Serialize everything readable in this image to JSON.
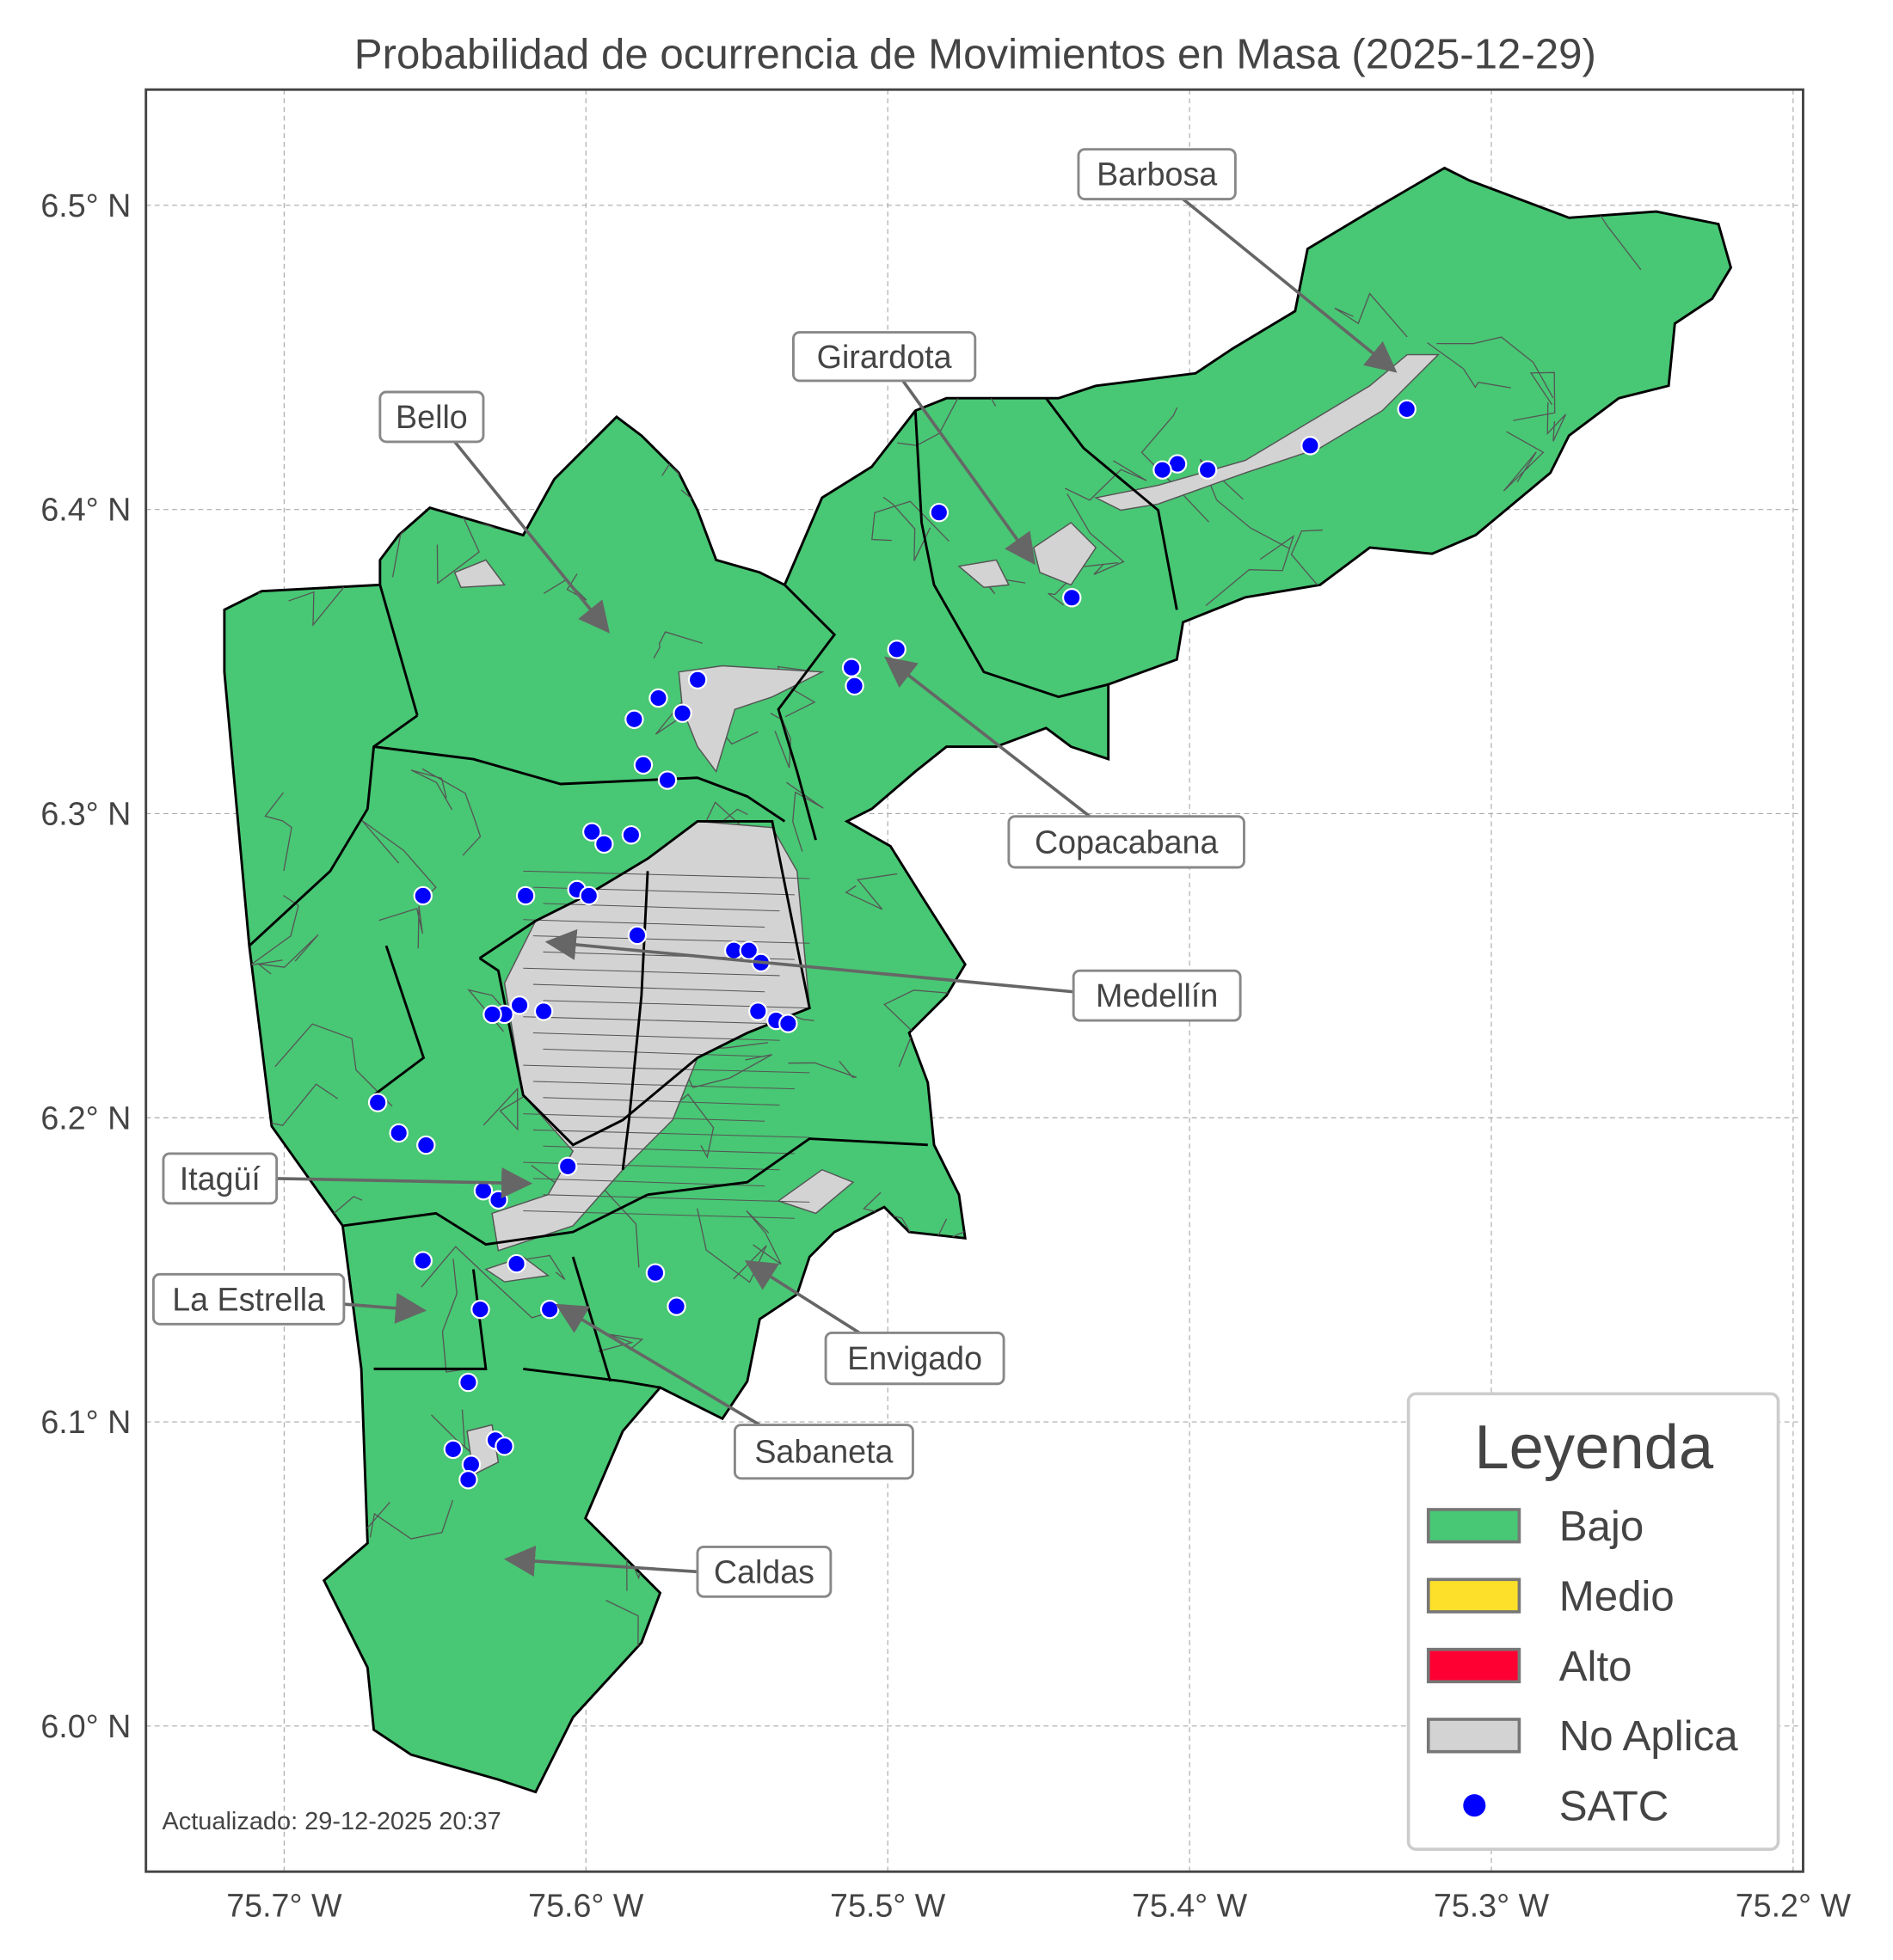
{
  "title": "Probabilidad de ocurrencia de Movimientos en Masa (2025-12-29)",
  "updated": "Actualizado: 29-12-2025 20:37",
  "axes": {
    "x_ticks": [
      {
        "value": -75.7,
        "label": "75.7° W"
      },
      {
        "value": -75.6,
        "label": "75.6° W"
      },
      {
        "value": -75.5,
        "label": "75.5° W"
      },
      {
        "value": -75.4,
        "label": "75.4° W"
      },
      {
        "value": -75.3,
        "label": "75.3° W"
      },
      {
        "value": -75.2,
        "label": "75.2° W"
      }
    ],
    "y_ticks": [
      {
        "value": 6.0,
        "label": "6.0° N"
      },
      {
        "value": 6.1,
        "label": "6.1° N"
      },
      {
        "value": 6.2,
        "label": "6.2° N"
      },
      {
        "value": 6.3,
        "label": "6.3° N"
      },
      {
        "value": 6.4,
        "label": "6.4° N"
      },
      {
        "value": 6.5,
        "label": "6.5° N"
      }
    ],
    "grid": true
  },
  "legend": {
    "title": "Leyenda",
    "placement": "bottom-right",
    "items": [
      {
        "label": "Bajo",
        "color": "#48C774",
        "kind": "patch"
      },
      {
        "label": "Medio",
        "color": "#FCE02A",
        "kind": "patch"
      },
      {
        "label": "Alto",
        "color": "#FF0033",
        "kind": "patch"
      },
      {
        "label": "No Aplica",
        "color": "#D3D3D3",
        "kind": "patch"
      },
      {
        "label": "SATC",
        "color": "#0000FF",
        "kind": "point"
      }
    ]
  },
  "municipalities": [
    {
      "name": "Barbosa",
      "level": "Bajo"
    },
    {
      "name": "Girardota",
      "level": "Bajo"
    },
    {
      "name": "Bello",
      "level": "Bajo"
    },
    {
      "name": "Copacabana",
      "level": "Bajo"
    },
    {
      "name": "Medellín",
      "level": "Bajo"
    },
    {
      "name": "Itagüí",
      "level": "Bajo"
    },
    {
      "name": "La Estrella",
      "level": "Bajo"
    },
    {
      "name": "Envigado",
      "level": "Bajo"
    },
    {
      "name": "Sabaneta",
      "level": "Bajo"
    },
    {
      "name": "Caldas",
      "level": "Bajo"
    }
  ],
  "satc_stations": [
    [
      -75.328,
      6.433
    ],
    [
      -75.36,
      6.421
    ],
    [
      -75.394,
      6.413
    ],
    [
      -75.404,
      6.415
    ],
    [
      -75.409,
      6.413
    ],
    [
      -75.483,
      6.399
    ],
    [
      -75.439,
      6.371
    ],
    [
      -75.497,
      6.354
    ],
    [
      -75.512,
      6.348
    ],
    [
      -75.511,
      6.342
    ],
    [
      -75.563,
      6.344
    ],
    [
      -75.568,
      6.333
    ],
    [
      -75.576,
      6.338
    ],
    [
      -75.584,
      6.331
    ],
    [
      -75.581,
      6.316
    ],
    [
      -75.573,
      6.311
    ],
    [
      -75.598,
      6.294
    ],
    [
      -75.594,
      6.29
    ],
    [
      -75.585,
      6.293
    ],
    [
      -75.654,
      6.273
    ],
    [
      -75.62,
      6.273
    ],
    [
      -75.603,
      6.275
    ],
    [
      -75.599,
      6.273
    ],
    [
      -75.583,
      6.26
    ],
    [
      -75.551,
      6.255
    ],
    [
      -75.546,
      6.255
    ],
    [
      -75.542,
      6.251
    ],
    [
      -75.543,
      6.235
    ],
    [
      -75.537,
      6.232
    ],
    [
      -75.533,
      6.231
    ],
    [
      -75.622,
      6.237
    ],
    [
      -75.627,
      6.234
    ],
    [
      -75.631,
      6.234
    ],
    [
      -75.614,
      6.235
    ],
    [
      -75.669,
      6.205
    ],
    [
      -75.662,
      6.195
    ],
    [
      -75.653,
      6.191
    ],
    [
      -75.606,
      6.184
    ],
    [
      -75.634,
      6.176
    ],
    [
      -75.629,
      6.173
    ],
    [
      -75.654,
      6.153
    ],
    [
      -75.623,
      6.152
    ],
    [
      -75.577,
      6.149
    ],
    [
      -75.57,
      6.138
    ],
    [
      -75.635,
      6.137
    ],
    [
      -75.612,
      6.137
    ],
    [
      -75.639,
      6.113
    ],
    [
      -75.644,
      6.091
    ],
    [
      -75.638,
      6.086
    ],
    [
      -75.639,
      6.081
    ],
    [
      -75.63,
      6.094
    ],
    [
      -75.627,
      6.092
    ]
  ]
}
